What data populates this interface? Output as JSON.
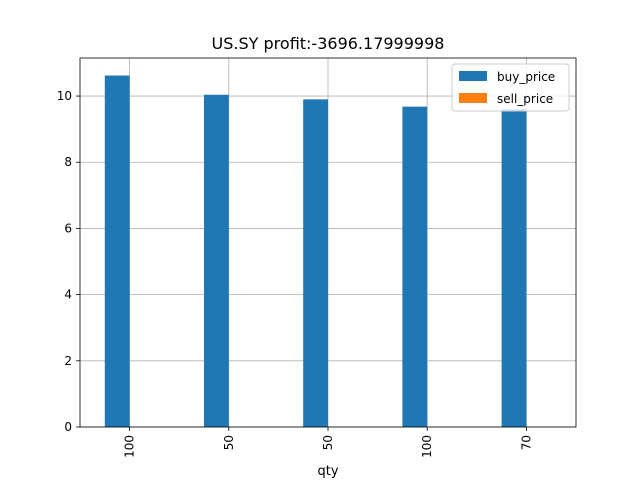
{
  "chart_data": {
    "type": "bar",
    "title": "US.SY  profit:-3696.17999998",
    "xlabel": "qty",
    "ylabel": "",
    "categories": [
      "100",
      "50",
      "50",
      "100",
      "70"
    ],
    "series": [
      {
        "name": "buy_price",
        "values": [
          10.62,
          10.04,
          9.9,
          9.68,
          9.6
        ],
        "color": "#1f77b4"
      },
      {
        "name": "sell_price",
        "values": [
          0,
          0,
          0,
          0,
          0
        ],
        "color": "#ff7f0e"
      }
    ],
    "ylim": [
      0,
      11.15
    ],
    "yticks": [
      0,
      2,
      4,
      6,
      8,
      10
    ],
    "ytick_labels": [
      "0",
      "2",
      "4",
      "6",
      "8",
      "10"
    ],
    "grid": true,
    "legend_position": "top-right"
  }
}
